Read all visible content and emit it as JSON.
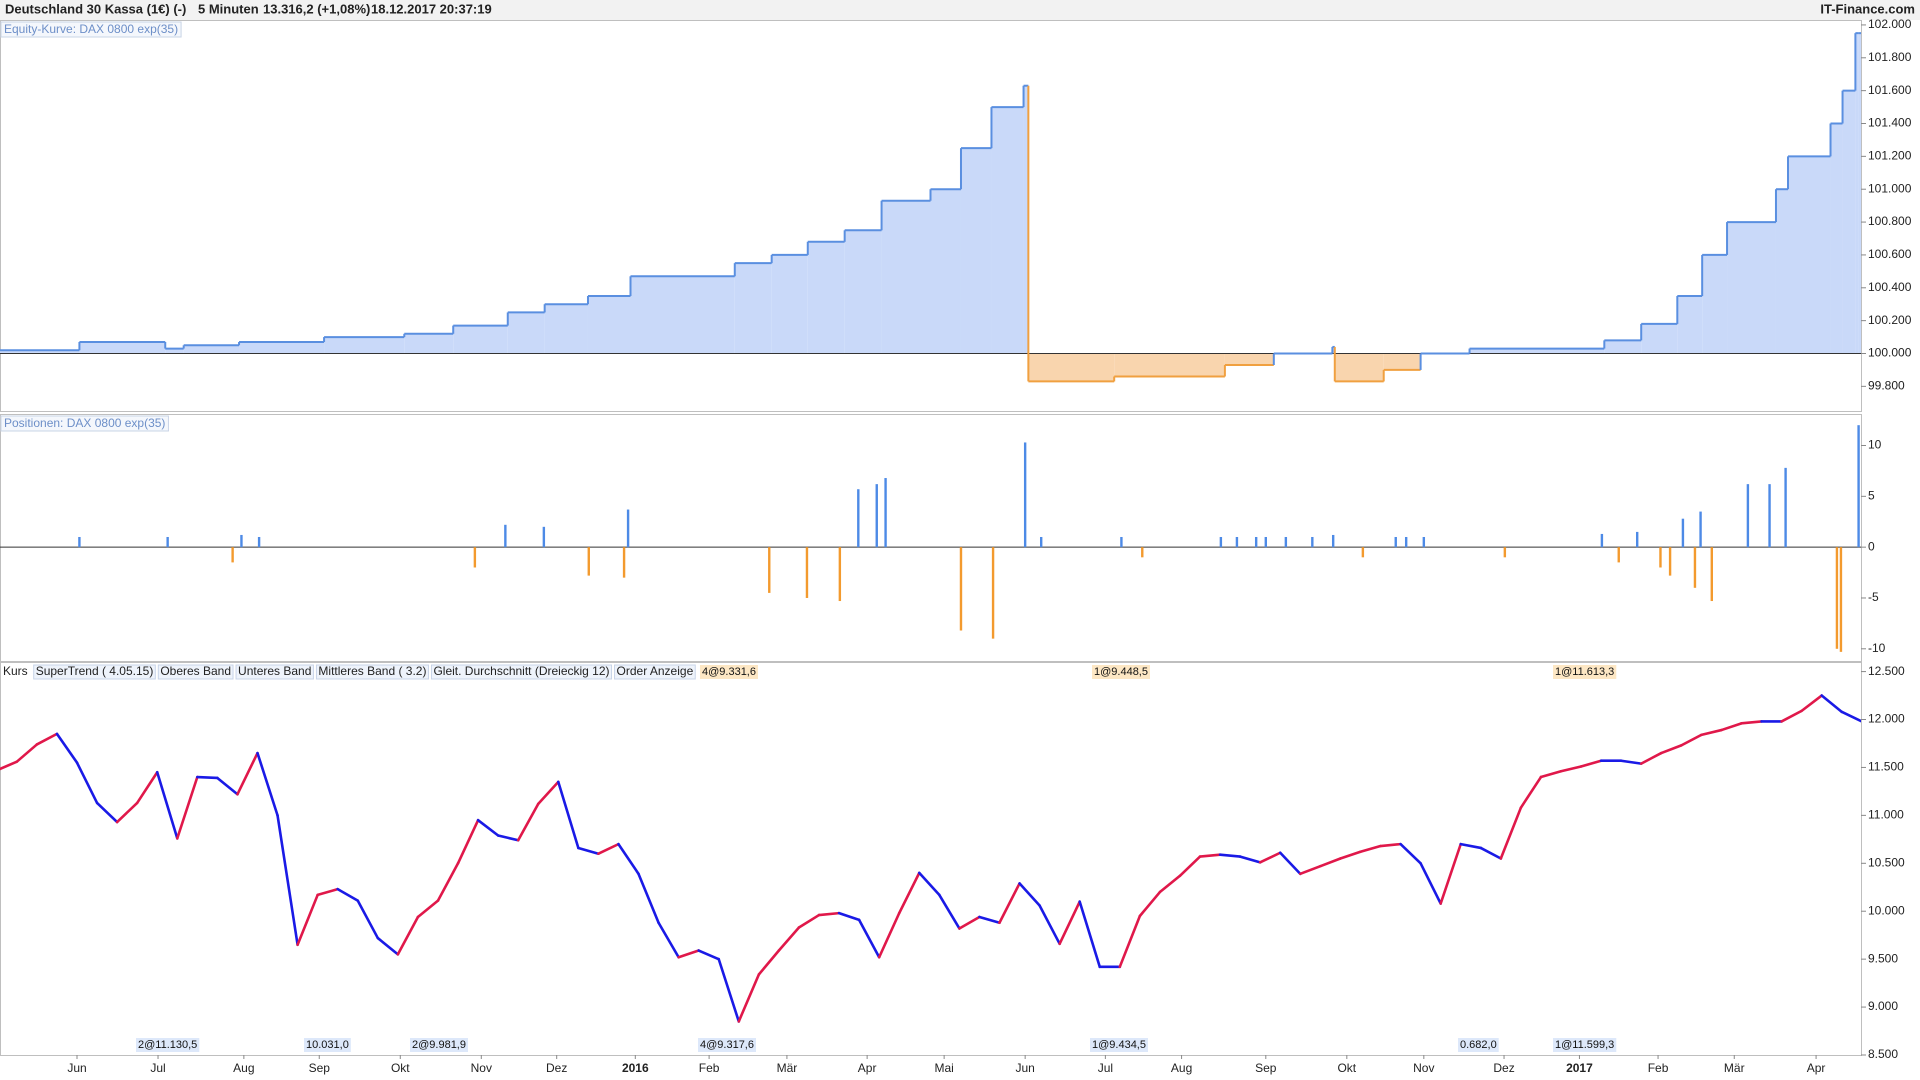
{
  "header": {
    "instrument": "Deutschland 30 Kassa (1€) (-)",
    "interval": "5 Minuten",
    "quote": "13.316,2 (+1,08%)",
    "timestamp": "18.12.2017 20:37:19",
    "brand": "IT-Finance.com"
  },
  "chart_data": [
    {
      "type": "step",
      "title": "Equity-Kurve: DAX 0800 exp(35)",
      "x": [
        0.04,
        1.03,
        2.1,
        2.33,
        3.02,
        4.08,
        5.08,
        5.69,
        6.37,
        6.83,
        7.37,
        7.9,
        9.2,
        9.66,
        10.11,
        10.57,
        11.03,
        11.64,
        12.02,
        12.4,
        12.8,
        12.86,
        13.93,
        15.31,
        15.92,
        16.65,
        16.68,
        17.29,
        17.75,
        18.36,
        20.04,
        20.5,
        20.95,
        21.26,
        21.57,
        22.18,
        22.33,
        22.86,
        23.01,
        23.17,
        23.21
      ],
      "values": [
        100.02,
        100.07,
        100.03,
        100.05,
        100.07,
        100.1,
        100.12,
        100.17,
        100.25,
        100.3,
        100.35,
        100.47,
        100.55,
        100.6,
        100.68,
        100.75,
        100.93,
        101.0,
        101.25,
        101.5,
        101.63,
        99.83,
        99.86,
        99.93,
        100.0,
        100.04,
        99.83,
        99.9,
        100.0,
        100.03,
        100.08,
        100.18,
        100.35,
        100.6,
        100.8,
        101.0,
        101.2,
        101.4,
        101.6,
        101.95,
        101.95
      ],
      "baseline": 100,
      "color": "#5a8fe0",
      "fill": "#c9d9f9",
      "negative_color": "#f0a040",
      "negative_fill": "#f9d5ae",
      "xlim": [
        0.04,
        23.24
      ],
      "ylim": [
        99.65,
        102.03
      ],
      "yticks": [
        {
          "value": 99.8,
          "label": "99.800"
        },
        {
          "value": 100,
          "label": "100.000"
        },
        {
          "value": 100.2,
          "label": "100.200"
        },
        {
          "value": 100.4,
          "label": "100.400"
        },
        {
          "value": 100.6,
          "label": "100.600"
        },
        {
          "value": 100.8,
          "label": "100.800"
        },
        {
          "value": 101,
          "label": "101.000"
        },
        {
          "value": 101.2,
          "label": "101.200"
        },
        {
          "value": 101.4,
          "label": "101.400"
        },
        {
          "value": 101.6,
          "label": "101.600"
        },
        {
          "value": 101.8,
          "label": "101.800"
        },
        {
          "value": 102,
          "label": "102.000"
        }
      ]
    },
    {
      "type": "bar",
      "title": "Positionen: DAX 0800 exp(35)",
      "x": [
        1.03,
        2.13,
        2.94,
        3.05,
        3.27,
        5.96,
        6.34,
        6.82,
        7.38,
        7.82,
        7.87,
        9.63,
        10.1,
        10.51,
        10.74,
        10.97,
        11.08,
        12.02,
        12.42,
        12.82,
        13.02,
        14.02,
        14.28,
        15.26,
        15.46,
        15.7,
        15.82,
        16.07,
        16.4,
        16.66,
        17.03,
        17.44,
        17.57,
        17.79,
        18.8,
        20.01,
        20.22,
        20.45,
        20.74,
        20.86,
        21.02,
        21.17,
        21.24,
        21.38,
        21.83,
        22.1,
        22.3,
        22.94,
        22.99,
        23.21
      ],
      "values": [
        1,
        1,
        -1.5,
        1.2,
        1,
        -2,
        2.2,
        2,
        -2.8,
        -3,
        3.7,
        -4.5,
        -5,
        -5.3,
        5.7,
        6.2,
        6.8,
        -8.2,
        -9,
        10.3,
        1,
        1,
        -1,
        1,
        1,
        1,
        1,
        1,
        1,
        1.2,
        -1,
        1,
        1,
        1,
        -1,
        1.3,
        -1.5,
        1.5,
        -2,
        -2.8,
        2.8,
        -4,
        3.5,
        -5.3,
        6.2,
        6.2,
        7.8,
        -10,
        -10.3,
        12
      ],
      "color": "#4d8ae6",
      "negative_color": "#f39a2e",
      "xlim": [
        0.04,
        23.24
      ],
      "ylim": [
        -11.2,
        13.1
      ],
      "yticks": [
        10,
        5,
        0,
        -5,
        -10
      ]
    },
    {
      "type": "line",
      "title": "Kurs",
      "legend": [
        {
          "name": "SuperTrend ( 4.05.15)",
          "color": "#3cb043"
        },
        {
          "name": "Oberes Band",
          "color": "#7a2fa0"
        },
        {
          "name": "Unteres Band",
          "color": "#7a2fa0"
        },
        {
          "name": "Mittleres Band ( 3.2)",
          "color": "#7a2fa0"
        },
        {
          "name": "Gleit. Durchschnitt (Dreieckig 12)",
          "color": "#d0204a"
        },
        {
          "name": "Order Anzeige",
          "color": "#f0a040"
        }
      ],
      "annotations_top": [
        "4@9.331,6",
        "1@9.448,5",
        "1@11.613,3"
      ],
      "annotations_bottom": [
        "2@11.130,5",
        "10.031,0",
        "2@9.981,9",
        "4@9.317,6",
        "1@9.434,5",
        "0.682,0",
        "1@11.599,3"
      ],
      "x": [
        0,
        0.25,
        0.5,
        0.75,
        1,
        1.25,
        1.5,
        1.75,
        2,
        2.25,
        2.5,
        2.75,
        3,
        3.25,
        3.5,
        3.75,
        4,
        4.25,
        4.5,
        4.75,
        5,
        5.25,
        5.5,
        5.75,
        6,
        6.25,
        6.5,
        6.75,
        7,
        7.25,
        7.5,
        7.75,
        8,
        8.25,
        8.5,
        8.75,
        9,
        9.25,
        9.5,
        9.75,
        10,
        10.25,
        10.5,
        10.75,
        11,
        11.25,
        11.5,
        11.75,
        12,
        12.25,
        12.5,
        12.75,
        13,
        13.25,
        13.5,
        13.75,
        14,
        14.25,
        14.5,
        14.75,
        15,
        15.25,
        15.5,
        15.75,
        16,
        16.25,
        16.5,
        16.75,
        17,
        17.25,
        17.5,
        17.75,
        18,
        18.25,
        18.5,
        18.75,
        19,
        19.25,
        19.5,
        19.75,
        20,
        20.25,
        20.5,
        20.75,
        21,
        21.25,
        21.5,
        21.75,
        22,
        22.25,
        22.5,
        22.75,
        23,
        23.25
      ],
      "values": [
        11470,
        11560,
        11740,
        11850,
        11550,
        11130,
        10930,
        11130,
        11450,
        10760,
        11400,
        11390,
        11220,
        11650,
        11000,
        9650,
        10170,
        10230,
        10110,
        9720,
        9550,
        9940,
        10110,
        10500,
        10950,
        10790,
        10740,
        11120,
        11350,
        10660,
        10600,
        10700,
        10390,
        9880,
        9520,
        9590,
        9500,
        8850,
        9340,
        9590,
        9830,
        9960,
        9980,
        9910,
        9520,
        9980,
        10400,
        10170,
        9820,
        9940,
        9880,
        10290,
        10060,
        9660,
        10100,
        9420,
        9420,
        9950,
        10200,
        10370,
        10570,
        10590,
        10570,
        10510,
        10610,
        10390,
        10470,
        10550,
        10620,
        10680,
        10700,
        10500,
        10080,
        10700,
        10660,
        10550,
        11080,
        11400,
        11460,
        11510,
        11570,
        11570,
        11540,
        11650,
        11730,
        11840,
        11890,
        11960,
        11980,
        11980,
        12090,
        12250,
        12080,
        11980
      ],
      "color": "#1a1ae6",
      "up_color": "#e0184a",
      "xlim": [
        0.04,
        23.24
      ],
      "ylim": [
        8500,
        12600
      ],
      "yticks": [
        {
          "value": 12500,
          "label": "12.500"
        },
        {
          "value": 12000,
          "label": "12.000"
        },
        {
          "value": 11500,
          "label": "11.500"
        },
        {
          "value": 11000,
          "label": "11.000"
        },
        {
          "value": 10500,
          "label": "10.500"
        },
        {
          "value": 10000,
          "label": "10.000"
        },
        {
          "value": 9500,
          "label": "9.500"
        },
        {
          "value": 9000,
          "label": "9.000"
        },
        {
          "value": 8500,
          "label": "8.500"
        }
      ],
      "xticks": [
        {
          "value": 1,
          "label": "Jun"
        },
        {
          "value": 2.01,
          "label": "Jul"
        },
        {
          "value": 3.08,
          "label": "Aug"
        },
        {
          "value": 4.02,
          "label": "Sep"
        },
        {
          "value": 5.03,
          "label": "Okt"
        },
        {
          "value": 6.04,
          "label": "Nov"
        },
        {
          "value": 6.98,
          "label": "Dez"
        },
        {
          "value": 7.96,
          "label": "2016"
        },
        {
          "value": 8.88,
          "label": "Feb"
        },
        {
          "value": 9.85,
          "label": "Mär"
        },
        {
          "value": 10.85,
          "label": "Apr"
        },
        {
          "value": 11.81,
          "label": "Mai"
        },
        {
          "value": 12.82,
          "label": "Jun"
        },
        {
          "value": 13.82,
          "label": "Jul"
        },
        {
          "value": 14.77,
          "label": "Aug"
        },
        {
          "value": 15.82,
          "label": "Sep"
        },
        {
          "value": 16.83,
          "label": "Okt"
        },
        {
          "value": 17.79,
          "label": "Nov"
        },
        {
          "value": 18.79,
          "label": "Dez"
        },
        {
          "value": 19.73,
          "label": "2017"
        },
        {
          "value": 20.71,
          "label": "Feb"
        },
        {
          "value": 21.66,
          "label": "Mär"
        },
        {
          "value": 22.68,
          "label": "Apr"
        }
      ]
    }
  ]
}
